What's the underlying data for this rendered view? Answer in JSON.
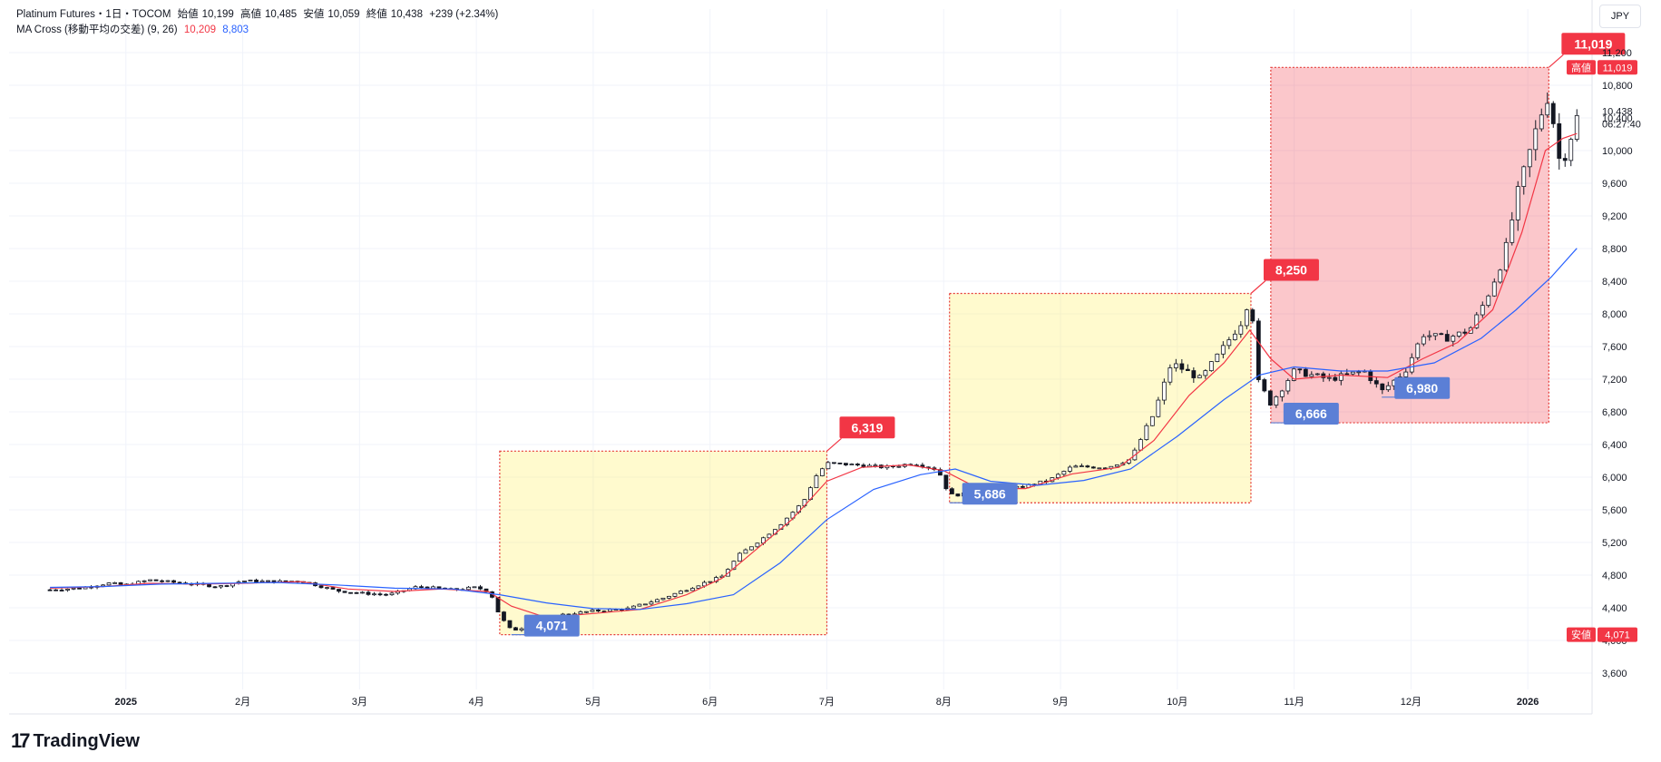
{
  "header": {
    "symbol": "Platinum Futures・1日・TOCOM",
    "open_label": "始値",
    "open": "10,199",
    "high_label": "高値",
    "high": "10,485",
    "low_label": "安値",
    "low": "10,059",
    "close_label": "終値",
    "close": "10,438",
    "change": "+239 (+2.34%)",
    "indicator_name": "MA Cross (移動平均の交差) (9, 26)",
    "ma_fast": "10,209",
    "ma_slow": "8,803"
  },
  "currency": "JPY",
  "logo": {
    "mark": "17",
    "text": "TradingView"
  },
  "chart_data": {
    "type": "line",
    "ylim": [
      3400,
      11400
    ],
    "y_ticks": [
      3600,
      4000,
      4400,
      4800,
      5200,
      5600,
      6000,
      6400,
      6800,
      7200,
      7600,
      8000,
      8400,
      8800,
      9200,
      9600,
      10000,
      10400,
      10800,
      11200
    ],
    "y_tick_labels": [
      "3,600",
      "4,000",
      "4,400",
      "4,800",
      "5,200",
      "5,600",
      "6,000",
      "6,400",
      "6,800",
      "7,200",
      "7,600",
      "8,000",
      "8,400",
      "8,800",
      "9,200",
      "9,600",
      "10,000",
      "10,400",
      "10,800",
      "11,200"
    ],
    "x_range": [
      0,
      13.55
    ],
    "x_tick_labels": [
      {
        "t": 1.0,
        "label": "2025"
      },
      {
        "t": 2.0,
        "label": "2月"
      },
      {
        "t": 3.0,
        "label": "3月"
      },
      {
        "t": 4.0,
        "label": "4月"
      },
      {
        "t": 5.0,
        "label": "5月"
      },
      {
        "t": 6.0,
        "label": "6月"
      },
      {
        "t": 7.0,
        "label": "7月"
      },
      {
        "t": 8.0,
        "label": "8月"
      },
      {
        "t": 9.0,
        "label": "9月"
      },
      {
        "t": 10.0,
        "label": "10月"
      },
      {
        "t": 11.0,
        "label": "11月"
      },
      {
        "t": 12.0,
        "label": "12月"
      },
      {
        "t": 13.0,
        "label": "2026"
      }
    ],
    "price_path": [
      [
        0.35,
        4620
      ],
      [
        0.6,
        4640
      ],
      [
        0.85,
        4700
      ],
      [
        1.0,
        4680
      ],
      [
        1.2,
        4740
      ],
      [
        1.5,
        4700
      ],
      [
        1.8,
        4660
      ],
      [
        2.0,
        4730
      ],
      [
        2.3,
        4720
      ],
      [
        2.5,
        4730
      ],
      [
        2.8,
        4610
      ],
      [
        3.0,
        4580
      ],
      [
        3.25,
        4560
      ],
      [
        3.5,
        4660
      ],
      [
        3.8,
        4620
      ],
      [
        4.0,
        4650
      ],
      [
        4.12,
        4590
      ],
      [
        4.2,
        4300
      ],
      [
        4.3,
        4120
      ],
      [
        4.5,
        4200
      ],
      [
        4.75,
        4320
      ],
      [
        5.0,
        4360
      ],
      [
        5.3,
        4390
      ],
      [
        5.6,
        4520
      ],
      [
        5.9,
        4680
      ],
      [
        6.1,
        4780
      ],
      [
        6.25,
        5050
      ],
      [
        6.45,
        5250
      ],
      [
        6.6,
        5420
      ],
      [
        6.8,
        5700
      ],
      [
        6.9,
        6000
      ],
      [
        7.0,
        6170
      ],
      [
        7.25,
        6150
      ],
      [
        7.5,
        6120
      ],
      [
        7.75,
        6170
      ],
      [
        7.95,
        6090
      ],
      [
        8.05,
        5780
      ],
      [
        8.3,
        5800
      ],
      [
        8.6,
        5860
      ],
      [
        8.9,
        5960
      ],
      [
        9.1,
        6130
      ],
      [
        9.4,
        6120
      ],
      [
        9.6,
        6220
      ],
      [
        9.8,
        6780
      ],
      [
        9.95,
        7400
      ],
      [
        10.2,
        7200
      ],
      [
        10.4,
        7600
      ],
      [
        10.55,
        7900
      ],
      [
        10.63,
        8250
      ],
      [
        10.68,
        7200
      ],
      [
        10.8,
        6900
      ],
      [
        11.0,
        7300
      ],
      [
        11.3,
        7200
      ],
      [
        11.6,
        7300
      ],
      [
        11.75,
        7050
      ],
      [
        11.95,
        7300
      ],
      [
        12.1,
        7750
      ],
      [
        12.3,
        7700
      ],
      [
        12.5,
        7800
      ],
      [
        12.65,
        8200
      ],
      [
        12.8,
        8700
      ],
      [
        12.9,
        9400
      ],
      [
        13.0,
        9900
      ],
      [
        13.1,
        10400
      ],
      [
        13.18,
        10700
      ],
      [
        13.23,
        10250
      ],
      [
        13.28,
        9800
      ],
      [
        13.35,
        10100
      ],
      [
        13.42,
        10400
      ]
    ],
    "series": [
      {
        "name": "9",
        "color": "#f23645",
        "points": [
          [
            0.35,
            4640
          ],
          [
            0.8,
            4660
          ],
          [
            1.2,
            4700
          ],
          [
            1.6,
            4690
          ],
          [
            2.0,
            4700
          ],
          [
            2.5,
            4720
          ],
          [
            2.9,
            4630
          ],
          [
            3.3,
            4600
          ],
          [
            3.7,
            4630
          ],
          [
            4.1,
            4600
          ],
          [
            4.3,
            4420
          ],
          [
            4.6,
            4280
          ],
          [
            5.0,
            4330
          ],
          [
            5.4,
            4380
          ],
          [
            5.8,
            4560
          ],
          [
            6.1,
            4760
          ],
          [
            6.4,
            5120
          ],
          [
            6.7,
            5480
          ],
          [
            7.0,
            5950
          ],
          [
            7.3,
            6120
          ],
          [
            7.7,
            6150
          ],
          [
            8.0,
            6080
          ],
          [
            8.3,
            5860
          ],
          [
            8.7,
            5860
          ],
          [
            9.1,
            6040
          ],
          [
            9.5,
            6120
          ],
          [
            9.8,
            6450
          ],
          [
            10.1,
            7000
          ],
          [
            10.4,
            7400
          ],
          [
            10.62,
            7800
          ],
          [
            10.8,
            7450
          ],
          [
            11.0,
            7200
          ],
          [
            11.4,
            7250
          ],
          [
            11.8,
            7220
          ],
          [
            12.1,
            7450
          ],
          [
            12.4,
            7650
          ],
          [
            12.7,
            8050
          ],
          [
            12.95,
            9000
          ],
          [
            13.15,
            10000
          ],
          [
            13.3,
            10150
          ],
          [
            13.42,
            10209
          ]
        ]
      },
      {
        "name": "26",
        "color": "#2962ff",
        "points": [
          [
            0.35,
            4650
          ],
          [
            0.8,
            4660
          ],
          [
            1.3,
            4690
          ],
          [
            1.8,
            4700
          ],
          [
            2.3,
            4710
          ],
          [
            2.8,
            4680
          ],
          [
            3.3,
            4640
          ],
          [
            3.8,
            4630
          ],
          [
            4.2,
            4560
          ],
          [
            4.6,
            4460
          ],
          [
            5.0,
            4390
          ],
          [
            5.4,
            4380
          ],
          [
            5.8,
            4450
          ],
          [
            6.2,
            4560
          ],
          [
            6.6,
            4950
          ],
          [
            7.0,
            5480
          ],
          [
            7.4,
            5850
          ],
          [
            7.8,
            6030
          ],
          [
            8.1,
            6100
          ],
          [
            8.4,
            5950
          ],
          [
            8.8,
            5900
          ],
          [
            9.2,
            5960
          ],
          [
            9.6,
            6100
          ],
          [
            10.0,
            6500
          ],
          [
            10.4,
            6950
          ],
          [
            10.7,
            7250
          ],
          [
            11.0,
            7350
          ],
          [
            11.4,
            7300
          ],
          [
            11.8,
            7300
          ],
          [
            12.2,
            7400
          ],
          [
            12.6,
            7700
          ],
          [
            12.9,
            8050
          ],
          [
            13.2,
            8450
          ],
          [
            13.42,
            8803
          ]
        ]
      }
    ],
    "annotations": [
      {
        "kind": "box",
        "color": "yellow",
        "t0": 4.2,
        "t1": 7.0,
        "y0": 4071,
        "y1": 6319
      },
      {
        "kind": "box",
        "color": "yellow",
        "t0": 8.05,
        "t1": 10.63,
        "y0": 5686,
        "y1": 8250
      },
      {
        "kind": "box",
        "color": "red",
        "t0": 10.8,
        "t1": 13.18,
        "y0": 6666,
        "y1": 11019
      },
      {
        "kind": "low",
        "label": "4,071",
        "t": 4.3,
        "y": 4071
      },
      {
        "kind": "high",
        "label": "6,319",
        "t": 7.0,
        "y": 6319
      },
      {
        "kind": "low",
        "label": "5,686",
        "t": 8.05,
        "y": 5686
      },
      {
        "kind": "high",
        "label": "8,250",
        "t": 10.63,
        "y": 8250
      },
      {
        "kind": "low",
        "label": "6,666",
        "t": 10.8,
        "y": 6666
      },
      {
        "kind": "low",
        "label": "6,980",
        "t": 11.75,
        "y": 6980
      },
      {
        "kind": "high",
        "label": "11,019",
        "t": 13.18,
        "y": 11019
      }
    ],
    "price_scale_badges": [
      {
        "label": "高値",
        "value": "11,019",
        "y": 11019,
        "color": "#f23645"
      },
      {
        "label": "",
        "value": "10,438",
        "y": 10438,
        "sub": "06:27:40"
      },
      {
        "label": "安値",
        "value": "4,071",
        "y": 4071,
        "color": "#f23645"
      }
    ]
  }
}
